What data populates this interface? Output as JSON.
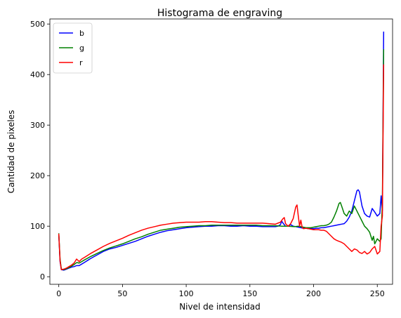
{
  "chart_data": {
    "type": "line",
    "title": "Histograma de engraving",
    "xlabel": "Nivel de intensidad",
    "ylabel": "Cantidad de pixeles",
    "xlim": [
      -7,
      262
    ],
    "ylim": [
      -15,
      510
    ],
    "xticks": [
      0,
      50,
      100,
      150,
      200,
      250
    ],
    "yticks": [
      0,
      100,
      200,
      300,
      400,
      500
    ],
    "grid": false,
    "legend_position": "top-left",
    "series": [
      {
        "name": "b",
        "color": "#0000ff",
        "points": [
          [
            0,
            84
          ],
          [
            1,
            30
          ],
          [
            2,
            14
          ],
          [
            4,
            13
          ],
          [
            6,
            15
          ],
          [
            8,
            17
          ],
          [
            10,
            19
          ],
          [
            12,
            20
          ],
          [
            14,
            22
          ],
          [
            16,
            22
          ],
          [
            18,
            25
          ],
          [
            20,
            28
          ],
          [
            25,
            36
          ],
          [
            30,
            43
          ],
          [
            35,
            50
          ],
          [
            40,
            55
          ],
          [
            45,
            58
          ],
          [
            50,
            62
          ],
          [
            55,
            66
          ],
          [
            60,
            70
          ],
          [
            65,
            75
          ],
          [
            70,
            80
          ],
          [
            75,
            84
          ],
          [
            80,
            88
          ],
          [
            85,
            91
          ],
          [
            90,
            93
          ],
          [
            95,
            95
          ],
          [
            100,
            97
          ],
          [
            105,
            98
          ],
          [
            110,
            99
          ],
          [
            115,
            100
          ],
          [
            120,
            100
          ],
          [
            125,
            101
          ],
          [
            130,
            101
          ],
          [
            135,
            100
          ],
          [
            140,
            100
          ],
          [
            145,
            101
          ],
          [
            150,
            100
          ],
          [
            155,
            100
          ],
          [
            160,
            99
          ],
          [
            165,
            99
          ],
          [
            170,
            99
          ],
          [
            172,
            100
          ],
          [
            174,
            103
          ],
          [
            175,
            110
          ],
          [
            176,
            106
          ],
          [
            178,
            100
          ],
          [
            180,
            100
          ],
          [
            182,
            103
          ],
          [
            184,
            100
          ],
          [
            186,
            99
          ],
          [
            188,
            98
          ],
          [
            190,
            97
          ],
          [
            192,
            96
          ],
          [
            194,
            96
          ],
          [
            196,
            95
          ],
          [
            198,
            95
          ],
          [
            200,
            95
          ],
          [
            202,
            96
          ],
          [
            204,
            96
          ],
          [
            206,
            97
          ],
          [
            208,
            97
          ],
          [
            210,
            98
          ],
          [
            212,
            99
          ],
          [
            214,
            100
          ],
          [
            216,
            101
          ],
          [
            218,
            102
          ],
          [
            220,
            103
          ],
          [
            222,
            104
          ],
          [
            224,
            105
          ],
          [
            226,
            110
          ],
          [
            228,
            118
          ],
          [
            230,
            130
          ],
          [
            232,
            150
          ],
          [
            234,
            170
          ],
          [
            235,
            172
          ],
          [
            236,
            168
          ],
          [
            238,
            140
          ],
          [
            240,
            125
          ],
          [
            242,
            120
          ],
          [
            244,
            118
          ],
          [
            246,
            135
          ],
          [
            248,
            128
          ],
          [
            250,
            120
          ],
          [
            252,
            125
          ],
          [
            253,
            160
          ],
          [
            254,
            130
          ],
          [
            255,
            485
          ]
        ]
      },
      {
        "name": "g",
        "color": "#008000",
        "points": [
          [
            0,
            86
          ],
          [
            1,
            35
          ],
          [
            2,
            15
          ],
          [
            4,
            14
          ],
          [
            6,
            16
          ],
          [
            8,
            18
          ],
          [
            10,
            21
          ],
          [
            12,
            24
          ],
          [
            14,
            28
          ],
          [
            16,
            27
          ],
          [
            18,
            30
          ],
          [
            20,
            33
          ],
          [
            25,
            40
          ],
          [
            30,
            46
          ],
          [
            35,
            52
          ],
          [
            40,
            57
          ],
          [
            45,
            61
          ],
          [
            50,
            65
          ],
          [
            55,
            70
          ],
          [
            60,
            75
          ],
          [
            65,
            79
          ],
          [
            70,
            84
          ],
          [
            75,
            88
          ],
          [
            80,
            92
          ],
          [
            85,
            94
          ],
          [
            90,
            96
          ],
          [
            95,
            98
          ],
          [
            100,
            99
          ],
          [
            105,
            100
          ],
          [
            110,
            101
          ],
          [
            115,
            101
          ],
          [
            120,
            102
          ],
          [
            125,
            102
          ],
          [
            130,
            102
          ],
          [
            135,
            102
          ],
          [
            140,
            102
          ],
          [
            145,
            102
          ],
          [
            150,
            102
          ],
          [
            155,
            102
          ],
          [
            160,
            101
          ],
          [
            165,
            101
          ],
          [
            170,
            101
          ],
          [
            175,
            100
          ],
          [
            180,
            100
          ],
          [
            185,
            99
          ],
          [
            188,
            100
          ],
          [
            190,
            99
          ],
          [
            192,
            98
          ],
          [
            194,
            97
          ],
          [
            196,
            97
          ],
          [
            198,
            97
          ],
          [
            200,
            98
          ],
          [
            202,
            99
          ],
          [
            204,
            100
          ],
          [
            206,
            101
          ],
          [
            208,
            101
          ],
          [
            210,
            102
          ],
          [
            212,
            104
          ],
          [
            214,
            108
          ],
          [
            216,
            118
          ],
          [
            218,
            130
          ],
          [
            220,
            145
          ],
          [
            221,
            147
          ],
          [
            222,
            140
          ],
          [
            224,
            125
          ],
          [
            226,
            120
          ],
          [
            228,
            130
          ],
          [
            230,
            125
          ],
          [
            232,
            140
          ],
          [
            234,
            130
          ],
          [
            236,
            120
          ],
          [
            238,
            110
          ],
          [
            240,
            100
          ],
          [
            242,
            95
          ],
          [
            244,
            88
          ],
          [
            246,
            72
          ],
          [
            247,
            80
          ],
          [
            248,
            65
          ],
          [
            250,
            75
          ],
          [
            252,
            70
          ],
          [
            253,
            75
          ],
          [
            254,
            150
          ],
          [
            255,
            450
          ]
        ]
      },
      {
        "name": "r",
        "color": "#ff0000",
        "points": [
          [
            0,
            85
          ],
          [
            1,
            32
          ],
          [
            2,
            14
          ],
          [
            4,
            15
          ],
          [
            6,
            17
          ],
          [
            8,
            20
          ],
          [
            10,
            23
          ],
          [
            12,
            27
          ],
          [
            14,
            35
          ],
          [
            16,
            30
          ],
          [
            18,
            35
          ],
          [
            20,
            38
          ],
          [
            25,
            46
          ],
          [
            30,
            53
          ],
          [
            35,
            60
          ],
          [
            40,
            66
          ],
          [
            45,
            71
          ],
          [
            50,
            76
          ],
          [
            55,
            82
          ],
          [
            60,
            87
          ],
          [
            65,
            92
          ],
          [
            70,
            96
          ],
          [
            75,
            99
          ],
          [
            80,
            102
          ],
          [
            85,
            104
          ],
          [
            90,
            106
          ],
          [
            95,
            107
          ],
          [
            100,
            108
          ],
          [
            105,
            108
          ],
          [
            110,
            108
          ],
          [
            115,
            109
          ],
          [
            120,
            109
          ],
          [
            125,
            108
          ],
          [
            130,
            107
          ],
          [
            135,
            107
          ],
          [
            140,
            106
          ],
          [
            145,
            106
          ],
          [
            150,
            106
          ],
          [
            155,
            106
          ],
          [
            160,
            106
          ],
          [
            165,
            105
          ],
          [
            170,
            104
          ],
          [
            172,
            106
          ],
          [
            174,
            108
          ],
          [
            176,
            115
          ],
          [
            177,
            117
          ],
          [
            178,
            105
          ],
          [
            180,
            100
          ],
          [
            182,
            105
          ],
          [
            184,
            115
          ],
          [
            186,
            138
          ],
          [
            187,
            142
          ],
          [
            188,
            120
          ],
          [
            189,
            100
          ],
          [
            190,
            112
          ],
          [
            191,
            98
          ],
          [
            192,
            95
          ],
          [
            194,
            96
          ],
          [
            196,
            95
          ],
          [
            198,
            94
          ],
          [
            200,
            93
          ],
          [
            202,
            93
          ],
          [
            204,
            93
          ],
          [
            206,
            92
          ],
          [
            208,
            92
          ],
          [
            210,
            90
          ],
          [
            212,
            85
          ],
          [
            214,
            80
          ],
          [
            216,
            75
          ],
          [
            218,
            72
          ],
          [
            220,
            70
          ],
          [
            222,
            68
          ],
          [
            224,
            65
          ],
          [
            226,
            60
          ],
          [
            228,
            55
          ],
          [
            230,
            50
          ],
          [
            232,
            55
          ],
          [
            234,
            53
          ],
          [
            236,
            48
          ],
          [
            238,
            46
          ],
          [
            240,
            50
          ],
          [
            242,
            45
          ],
          [
            244,
            48
          ],
          [
            246,
            55
          ],
          [
            248,
            60
          ],
          [
            250,
            45
          ],
          [
            252,
            50
          ],
          [
            253,
            100
          ],
          [
            254,
            120
          ],
          [
            255,
            420
          ]
        ]
      }
    ]
  }
}
